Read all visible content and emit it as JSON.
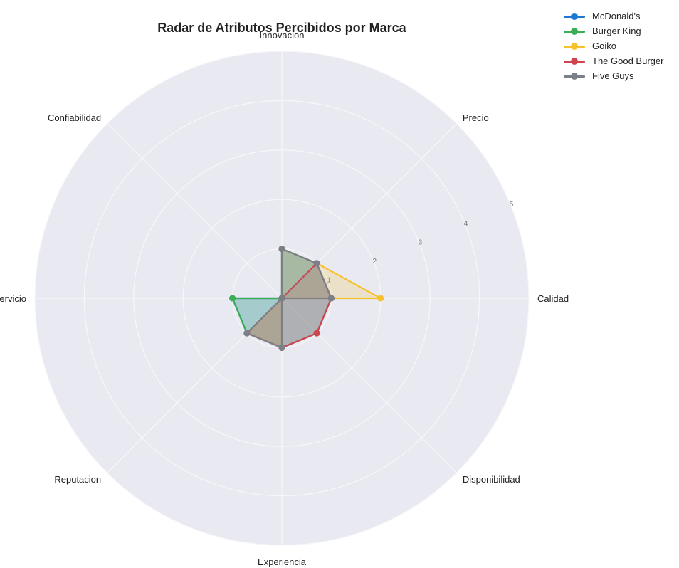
{
  "chart_data": {
    "type": "radar",
    "title": "Radar de Atributos Percibidos por Marca",
    "axes": [
      "Calidad",
      "Precio",
      "Innovacion",
      "Confiabilidad",
      "Servicio",
      "Reputacion",
      "Experiencia",
      "Disponibilidad"
    ],
    "rlim": [
      0,
      5
    ],
    "rticks": [
      "1",
      "2",
      "3",
      "4",
      "5"
    ],
    "grid": true,
    "legend_position": "top-right",
    "series": [
      {
        "name": "McDonald's",
        "color": "#1f77d4",
        "values": [
          1,
          1,
          1,
          0,
          1,
          1,
          1,
          1
        ]
      },
      {
        "name": "Burger King",
        "color": "#3aad55",
        "values": [
          1,
          1,
          1,
          0,
          1,
          1,
          1,
          1
        ]
      },
      {
        "name": "Goiko",
        "color": "#f6c12a",
        "values": [
          2,
          1,
          1,
          0,
          0,
          1,
          1,
          0
        ]
      },
      {
        "name": "The Good Burger",
        "color": "#d0444e",
        "values": [
          1,
          1,
          0,
          0,
          0,
          1,
          1,
          1
        ]
      },
      {
        "name": "Five Guys",
        "color": "#7a7f89",
        "values": [
          1,
          1,
          1,
          0,
          0,
          1,
          1,
          0
        ]
      }
    ]
  }
}
